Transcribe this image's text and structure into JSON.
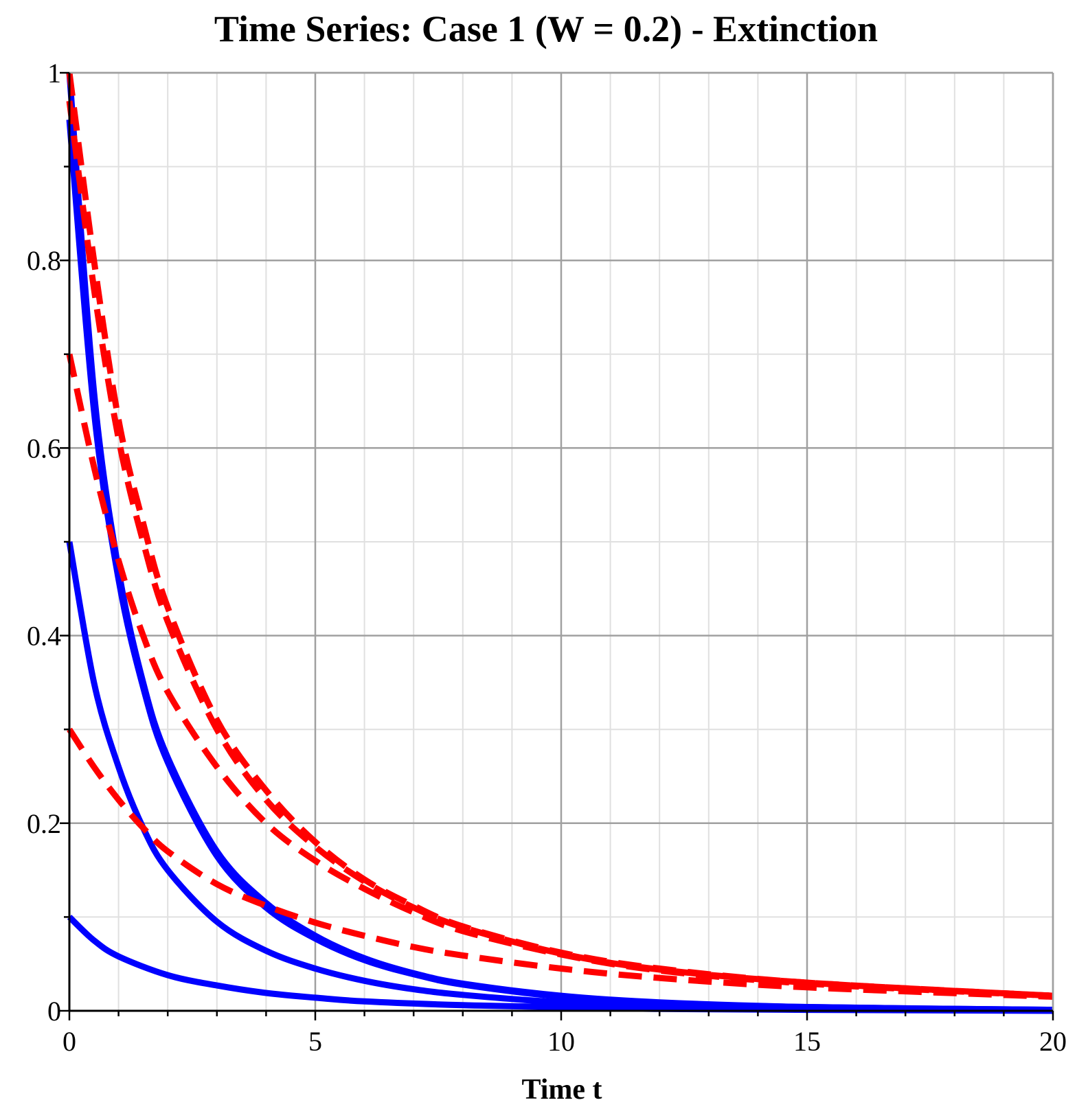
{
  "chart_data": {
    "type": "line",
    "title": "Time Series: Case 1 (W = 0.2) - Extinction",
    "xlabel": "Time t",
    "ylabel": "",
    "xlim": [
      0,
      20
    ],
    "ylim": [
      0,
      1
    ],
    "x_ticks": [
      0,
      5,
      10,
      15,
      20
    ],
    "y_ticks": [
      0,
      0.2,
      0.4,
      0.6,
      0.8,
      1
    ],
    "x_tick_labels": [
      "0",
      "5",
      "10",
      "15",
      "20"
    ],
    "y_tick_labels": [
      "0",
      "0.2",
      "0.4",
      "0.6",
      "0.8",
      "1"
    ],
    "grid": true,
    "legend": "none",
    "colors": {
      "prey": "#0000ff",
      "predator": "#ff0000",
      "grid_major": "#a0a0a0",
      "grid_minor": "#e0e0e0"
    },
    "series": [
      {
        "style": "solid",
        "color": "blue",
        "points": [
          [
            0,
            1.0
          ],
          [
            0.5,
            0.66
          ],
          [
            1,
            0.47
          ],
          [
            1.5,
            0.35
          ],
          [
            2,
            0.27
          ],
          [
            3,
            0.17
          ],
          [
            4,
            0.115
          ],
          [
            5,
            0.08
          ],
          [
            6,
            0.056
          ],
          [
            7,
            0.04
          ],
          [
            8,
            0.029
          ],
          [
            10,
            0.016
          ],
          [
            12,
            0.009
          ],
          [
            15,
            0.004
          ],
          [
            20,
            0.001
          ]
        ]
      },
      {
        "style": "solid",
        "color": "blue",
        "points": [
          [
            0,
            0.95
          ],
          [
            0.5,
            0.64
          ],
          [
            1,
            0.46
          ],
          [
            1.5,
            0.345
          ],
          [
            2,
            0.265
          ],
          [
            3,
            0.165
          ],
          [
            4,
            0.11
          ],
          [
            5,
            0.077
          ],
          [
            6,
            0.054
          ],
          [
            7,
            0.039
          ],
          [
            8,
            0.028
          ],
          [
            10,
            0.015
          ],
          [
            12,
            0.008
          ],
          [
            15,
            0.004
          ],
          [
            20,
            0.001
          ]
        ]
      },
      {
        "style": "solid",
        "color": "blue",
        "points": [
          [
            0,
            0.5
          ],
          [
            0.5,
            0.35
          ],
          [
            1,
            0.26
          ],
          [
            1.5,
            0.195
          ],
          [
            2,
            0.15
          ],
          [
            3,
            0.095
          ],
          [
            4,
            0.064
          ],
          [
            5,
            0.045
          ],
          [
            6,
            0.032
          ],
          [
            7,
            0.023
          ],
          [
            8,
            0.017
          ],
          [
            10,
            0.009
          ],
          [
            12,
            0.005
          ],
          [
            15,
            0.002
          ],
          [
            20,
            0.001
          ]
        ]
      },
      {
        "style": "solid",
        "color": "blue",
        "points": [
          [
            0,
            0.1
          ],
          [
            0.5,
            0.075
          ],
          [
            1,
            0.058
          ],
          [
            2,
            0.038
          ],
          [
            3,
            0.027
          ],
          [
            4,
            0.019
          ],
          [
            5,
            0.014
          ],
          [
            6,
            0.01
          ],
          [
            8,
            0.006
          ],
          [
            10,
            0.004
          ],
          [
            12,
            0.002
          ],
          [
            15,
            0.001
          ],
          [
            20,
            0.0
          ]
        ]
      },
      {
        "style": "dashed",
        "color": "red",
        "points": [
          [
            0,
            1.0
          ],
          [
            0.5,
            0.8
          ],
          [
            1,
            0.63
          ],
          [
            1.5,
            0.52
          ],
          [
            2,
            0.43
          ],
          [
            3,
            0.31
          ],
          [
            4,
            0.235
          ],
          [
            5,
            0.18
          ],
          [
            6,
            0.14
          ],
          [
            7,
            0.112
          ],
          [
            8,
            0.09
          ],
          [
            10,
            0.062
          ],
          [
            12,
            0.045
          ],
          [
            15,
            0.03
          ],
          [
            20,
            0.016
          ]
        ]
      },
      {
        "style": "dashed",
        "color": "red",
        "points": [
          [
            0,
            0.97
          ],
          [
            0.5,
            0.77
          ],
          [
            1,
            0.61
          ],
          [
            1.5,
            0.5
          ],
          [
            2,
            0.415
          ],
          [
            3,
            0.3
          ],
          [
            4,
            0.225
          ],
          [
            5,
            0.175
          ],
          [
            6,
            0.138
          ],
          [
            7,
            0.11
          ],
          [
            8,
            0.089
          ],
          [
            10,
            0.061
          ],
          [
            12,
            0.044
          ],
          [
            15,
            0.03
          ],
          [
            20,
            0.016
          ]
        ]
      },
      {
        "style": "dashed",
        "color": "red",
        "points": [
          [
            0,
            0.7
          ],
          [
            0.5,
            0.58
          ],
          [
            1,
            0.48
          ],
          [
            1.5,
            0.4
          ],
          [
            2,
            0.34
          ],
          [
            3,
            0.26
          ],
          [
            4,
            0.2
          ],
          [
            5,
            0.16
          ],
          [
            6,
            0.13
          ],
          [
            7,
            0.105
          ],
          [
            8,
            0.085
          ],
          [
            10,
            0.06
          ],
          [
            12,
            0.043
          ],
          [
            15,
            0.029
          ],
          [
            20,
            0.016
          ]
        ]
      },
      {
        "style": "dashed",
        "color": "red",
        "points": [
          [
            0,
            0.3
          ],
          [
            0.5,
            0.26
          ],
          [
            1,
            0.225
          ],
          [
            1.5,
            0.195
          ],
          [
            2,
            0.17
          ],
          [
            3,
            0.135
          ],
          [
            4,
            0.112
          ],
          [
            5,
            0.094
          ],
          [
            6,
            0.08
          ],
          [
            7,
            0.068
          ],
          [
            8,
            0.059
          ],
          [
            10,
            0.045
          ],
          [
            12,
            0.035
          ],
          [
            15,
            0.025
          ],
          [
            20,
            0.015
          ]
        ]
      }
    ]
  }
}
